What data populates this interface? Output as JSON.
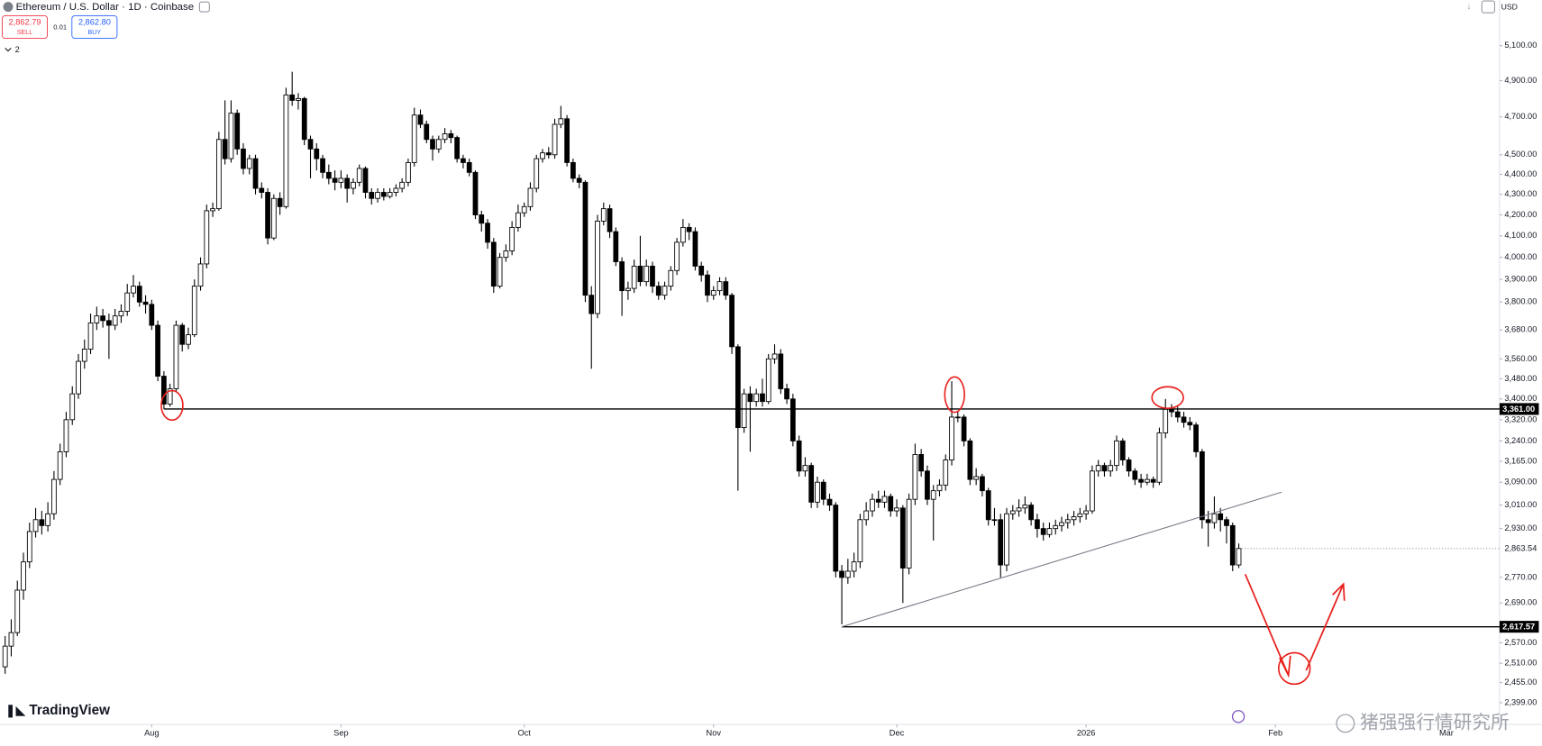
{
  "header": {
    "symbol": "Ethereum / U.S. Dollar · 1D · Coinbase",
    "sell_price": "2,862.79",
    "sell_label": "SELL",
    "spread": "0.01",
    "buy_price": "2,862.80",
    "buy_label": "BUY",
    "indicators": "2",
    "currency": "USD"
  },
  "chart_data": {
    "type": "candlestick",
    "ohlc": [
      [
        2500,
        2590,
        2480,
        2560
      ],
      [
        2560,
        2640,
        2530,
        2600
      ],
      [
        2600,
        2760,
        2590,
        2730
      ],
      [
        2730,
        2850,
        2700,
        2820
      ],
      [
        2820,
        2950,
        2800,
        2920
      ],
      [
        2920,
        3000,
        2900,
        2960
      ],
      [
        2960,
        2990,
        2910,
        2940
      ],
      [
        2940,
        3020,
        2920,
        2980
      ],
      [
        2980,
        3130,
        2960,
        3100
      ],
      [
        3100,
        3230,
        3080,
        3200
      ],
      [
        3200,
        3350,
        3180,
        3320
      ],
      [
        3320,
        3450,
        3300,
        3420
      ],
      [
        3420,
        3580,
        3400,
        3550
      ],
      [
        3550,
        3640,
        3520,
        3600
      ],
      [
        3600,
        3750,
        3580,
        3710
      ],
      [
        3710,
        3780,
        3680,
        3740
      ],
      [
        3740,
        3770,
        3690,
        3720
      ],
      [
        3720,
        3750,
        3560,
        3700
      ],
      [
        3700,
        3770,
        3680,
        3740
      ],
      [
        3740,
        3790,
        3710,
        3760
      ],
      [
        3760,
        3880,
        3740,
        3840
      ],
      [
        3840,
        3920,
        3820,
        3870
      ],
      [
        3870,
        3890,
        3780,
        3800
      ],
      [
        3800,
        3830,
        3750,
        3790
      ],
      [
        3790,
        3810,
        3680,
        3700
      ],
      [
        3700,
        3720,
        3470,
        3490
      ],
      [
        3490,
        3510,
        3361,
        3380
      ],
      [
        3380,
        3460,
        3370,
        3440
      ],
      [
        3440,
        3720,
        3430,
        3700
      ],
      [
        3700,
        3710,
        3590,
        3620
      ],
      [
        3620,
        3690,
        3600,
        3660
      ],
      [
        3660,
        3900,
        3650,
        3870
      ],
      [
        3870,
        4000,
        3850,
        3970
      ],
      [
        3970,
        4250,
        3950,
        4220
      ],
      [
        4220,
        4260,
        4190,
        4230
      ],
      [
        4230,
        4620,
        4220,
        4580
      ],
      [
        4580,
        4790,
        4450,
        4480
      ],
      [
        4480,
        4790,
        4460,
        4720
      ],
      [
        4720,
        4740,
        4500,
        4530
      ],
      [
        4530,
        4560,
        4400,
        4430
      ],
      [
        4430,
        4500,
        4400,
        4480
      ],
      [
        4480,
        4500,
        4300,
        4330
      ],
      [
        4330,
        4360,
        4280,
        4310
      ],
      [
        4310,
        4330,
        4060,
        4090
      ],
      [
        4090,
        4300,
        4080,
        4280
      ],
      [
        4280,
        4310,
        4200,
        4240
      ],
      [
        4240,
        4860,
        4230,
        4820
      ],
      [
        4820,
        4950,
        4760,
        4790
      ],
      [
        4790,
        4830,
        4740,
        4800
      ],
      [
        4800,
        4810,
        4550,
        4580
      ],
      [
        4580,
        4600,
        4380,
        4530
      ],
      [
        4530,
        4560,
        4420,
        4480
      ],
      [
        4480,
        4500,
        4380,
        4410
      ],
      [
        4410,
        4450,
        4350,
        4380
      ],
      [
        4380,
        4420,
        4320,
        4360
      ],
      [
        4360,
        4420,
        4330,
        4380
      ],
      [
        4380,
        4400,
        4260,
        4330
      ],
      [
        4330,
        4380,
        4300,
        4360
      ],
      [
        4360,
        4450,
        4340,
        4430
      ],
      [
        4430,
        4440,
        4280,
        4310
      ],
      [
        4310,
        4330,
        4250,
        4280
      ],
      [
        4280,
        4330,
        4260,
        4310
      ],
      [
        4310,
        4330,
        4270,
        4290
      ],
      [
        4290,
        4330,
        4280,
        4310
      ],
      [
        4310,
        4350,
        4290,
        4330
      ],
      [
        4330,
        4380,
        4310,
        4360
      ],
      [
        4360,
        4480,
        4340,
        4460
      ],
      [
        4460,
        4750,
        4440,
        4710
      ],
      [
        4710,
        4740,
        4640,
        4660
      ],
      [
        4660,
        4680,
        4560,
        4580
      ],
      [
        4580,
        4600,
        4470,
        4530
      ],
      [
        4530,
        4600,
        4510,
        4580
      ],
      [
        4580,
        4640,
        4560,
        4610
      ],
      [
        4610,
        4630,
        4560,
        4590
      ],
      [
        4590,
        4600,
        4460,
        4480
      ],
      [
        4480,
        4500,
        4430,
        4460
      ],
      [
        4460,
        4480,
        4390,
        4410
      ],
      [
        4410,
        4420,
        4180,
        4200
      ],
      [
        4200,
        4220,
        4120,
        4160
      ],
      [
        4160,
        4180,
        4040,
        4070
      ],
      [
        4070,
        4090,
        3840,
        3870
      ],
      [
        3870,
        4020,
        3860,
        4000
      ],
      [
        4000,
        4060,
        3980,
        4030
      ],
      [
        4030,
        4170,
        4010,
        4140
      ],
      [
        4140,
        4250,
        4120,
        4210
      ],
      [
        4210,
        4260,
        4190,
        4240
      ],
      [
        4240,
        4360,
        4220,
        4330
      ],
      [
        4330,
        4500,
        4310,
        4480
      ],
      [
        4480,
        4530,
        4460,
        4510
      ],
      [
        4510,
        4540,
        4480,
        4500
      ],
      [
        4500,
        4690,
        4480,
        4660
      ],
      [
        4660,
        4760,
        4640,
        4690
      ],
      [
        4690,
        4710,
        4440,
        4460
      ],
      [
        4460,
        4480,
        4360,
        4380
      ],
      [
        4380,
        4400,
        4330,
        4360
      ],
      [
        4360,
        4370,
        3800,
        3830
      ],
      [
        3830,
        3870,
        3520,
        3750
      ],
      [
        3750,
        4200,
        3730,
        4170
      ],
      [
        4170,
        4260,
        4150,
        4230
      ],
      [
        4230,
        4250,
        4090,
        4120
      ],
      [
        4120,
        4140,
        3960,
        3980
      ],
      [
        3980,
        4000,
        3740,
        3850
      ],
      [
        3850,
        3890,
        3810,
        3860
      ],
      [
        3860,
        3990,
        3840,
        3960
      ],
      [
        3960,
        4100,
        3870,
        3890
      ],
      [
        3890,
        3990,
        3870,
        3960
      ],
      [
        3960,
        3980,
        3840,
        3870
      ],
      [
        3870,
        3890,
        3810,
        3830
      ],
      [
        3830,
        3890,
        3810,
        3870
      ],
      [
        3870,
        3960,
        3850,
        3940
      ],
      [
        3940,
        4090,
        3920,
        4070
      ],
      [
        4070,
        4180,
        4050,
        4140
      ],
      [
        4140,
        4160,
        4080,
        4120
      ],
      [
        4120,
        4140,
        3940,
        3960
      ],
      [
        3960,
        3980,
        3890,
        3920
      ],
      [
        3920,
        3940,
        3800,
        3830
      ],
      [
        3830,
        3870,
        3810,
        3850
      ],
      [
        3850,
        3910,
        3830,
        3890
      ],
      [
        3890,
        3910,
        3810,
        3830
      ],
      [
        3830,
        3840,
        3580,
        3610
      ],
      [
        3610,
        3620,
        3060,
        3290
      ],
      [
        3290,
        3440,
        3270,
        3420
      ],
      [
        3420,
        3450,
        3200,
        3390
      ],
      [
        3390,
        3440,
        3370,
        3420
      ],
      [
        3420,
        3480,
        3370,
        3390
      ],
      [
        3390,
        3580,
        3380,
        3560
      ],
      [
        3560,
        3620,
        3540,
        3580
      ],
      [
        3580,
        3600,
        3420,
        3440
      ],
      [
        3440,
        3460,
        3380,
        3400
      ],
      [
        3400,
        3420,
        3220,
        3240
      ],
      [
        3240,
        3260,
        3110,
        3130
      ],
      [
        3130,
        3180,
        3110,
        3150
      ],
      [
        3150,
        3160,
        3000,
        3020
      ],
      [
        3020,
        3110,
        3000,
        3090
      ],
      [
        3090,
        3100,
        3010,
        3030
      ],
      [
        3030,
        3050,
        2990,
        3010
      ],
      [
        3010,
        3020,
        2770,
        2790
      ],
      [
        2790,
        2810,
        2625,
        2770
      ],
      [
        2770,
        2830,
        2750,
        2790
      ],
      [
        2790,
        2850,
        2770,
        2820
      ],
      [
        2820,
        2980,
        2800,
        2960
      ],
      [
        2960,
        3020,
        2940,
        2990
      ],
      [
        2990,
        3050,
        2970,
        3030
      ],
      [
        3030,
        3060,
        3000,
        3020
      ],
      [
        3020,
        3060,
        3000,
        3040
      ],
      [
        3040,
        3050,
        2970,
        2990
      ],
      [
        2990,
        3030,
        2970,
        3000
      ],
      [
        3000,
        3010,
        2690,
        2800
      ],
      [
        2800,
        3050,
        2780,
        3030
      ],
      [
        3030,
        3230,
        3010,
        3190
      ],
      [
        3190,
        3210,
        3110,
        3130
      ],
      [
        3130,
        3150,
        3010,
        3030
      ],
      [
        3030,
        3080,
        2890,
        3060
      ],
      [
        3060,
        3100,
        3040,
        3080
      ],
      [
        3080,
        3190,
        3060,
        3170
      ],
      [
        3170,
        3470,
        3150,
        3330
      ],
      [
        3330,
        3350,
        3310,
        3330
      ],
      [
        3330,
        3340,
        3220,
        3240
      ],
      [
        3240,
        3250,
        3080,
        3100
      ],
      [
        3100,
        3140,
        3080,
        3110
      ],
      [
        3110,
        3120,
        3040,
        3060
      ],
      [
        3060,
        3070,
        2940,
        2960
      ],
      [
        2960,
        3000,
        2940,
        2960
      ],
      [
        2960,
        2980,
        2770,
        2810
      ],
      [
        2810,
        3000,
        2790,
        2980
      ],
      [
        2980,
        3010,
        2960,
        2990
      ],
      [
        2990,
        3030,
        2970,
        3000
      ],
      [
        3000,
        3040,
        2980,
        3010
      ],
      [
        3010,
        3020,
        2940,
        2960
      ],
      [
        2960,
        2980,
        2900,
        2930
      ],
      [
        2930,
        2950,
        2890,
        2910
      ],
      [
        2910,
        2950,
        2900,
        2930
      ],
      [
        2930,
        2960,
        2910,
        2940
      ],
      [
        2940,
        2970,
        2920,
        2950
      ],
      [
        2950,
        2980,
        2930,
        2960
      ],
      [
        2960,
        2990,
        2940,
        2970
      ],
      [
        2970,
        3000,
        2950,
        2980
      ],
      [
        2980,
        3010,
        2960,
        2990
      ],
      [
        2990,
        3150,
        2980,
        3130
      ],
      [
        3130,
        3170,
        3110,
        3150
      ],
      [
        3150,
        3160,
        3110,
        3130
      ],
      [
        3130,
        3170,
        3110,
        3150
      ],
      [
        3150,
        3260,
        3130,
        3240
      ],
      [
        3240,
        3250,
        3150,
        3170
      ],
      [
        3170,
        3180,
        3110,
        3130
      ],
      [
        3130,
        3140,
        3080,
        3100
      ],
      [
        3100,
        3120,
        3070,
        3090
      ],
      [
        3090,
        3120,
        3080,
        3100
      ],
      [
        3100,
        3110,
        3070,
        3090
      ],
      [
        3090,
        3290,
        3080,
        3270
      ],
      [
        3270,
        3400,
        3250,
        3360
      ],
      [
        3360,
        3380,
        3330,
        3350
      ],
      [
        3350,
        3370,
        3310,
        3330
      ],
      [
        3330,
        3350,
        3290,
        3310
      ],
      [
        3310,
        3330,
        3280,
        3300
      ],
      [
        3300,
        3310,
        3180,
        3200
      ],
      [
        3200,
        3210,
        2930,
        2960
      ],
      [
        2960,
        2990,
        2870,
        2950
      ],
      [
        2950,
        3040,
        2930,
        2980
      ],
      [
        2980,
        3000,
        2920,
        2960
      ],
      [
        2960,
        2970,
        2880,
        2940
      ],
      [
        2940,
        2950,
        2790,
        2810
      ],
      [
        2810,
        2880,
        2800,
        2863.54
      ]
    ],
    "up_color": "#ffffff",
    "down_color": "#000000",
    "xlim": [
      -0.8,
      244.7
    ],
    "xticks": [
      {
        "value": 24,
        "label": "Aug"
      },
      {
        "value": 55,
        "label": "Sep"
      },
      {
        "value": 85,
        "label": "Oct"
      },
      {
        "value": 116,
        "label": "Nov"
      },
      {
        "value": 146,
        "label": "Dec"
      },
      {
        "value": 177,
        "label": "2026"
      },
      {
        "value": 208,
        "label": "Feb"
      },
      {
        "value": 236,
        "label": "Mar"
      }
    ],
    "ylim": [
      2340,
      5375
    ],
    "log_scale": true,
    "yticks": [
      {
        "value": 5100,
        "label": "5,100.00"
      },
      {
        "value": 4900,
        "label": "4,900.00"
      },
      {
        "value": 4700,
        "label": "4,700.00"
      },
      {
        "value": 4500,
        "label": "4,500.00"
      },
      {
        "value": 4400,
        "label": "4,400.00"
      },
      {
        "value": 4300,
        "label": "4,300.00"
      },
      {
        "value": 4200,
        "label": "4,200.00"
      },
      {
        "value": 4100,
        "label": "4,100.00"
      },
      {
        "value": 4000,
        "label": "4,000.00"
      },
      {
        "value": 3900,
        "label": "3,900.00"
      },
      {
        "value": 3800,
        "label": "3,800.00"
      },
      {
        "value": 3680,
        "label": "3,680.00"
      },
      {
        "value": 3560,
        "label": "3,560.00"
      },
      {
        "value": 3480,
        "label": "3,480.00"
      },
      {
        "value": 3400,
        "label": "3,400.00"
      },
      {
        "value": 3320,
        "label": "3,320.00"
      },
      {
        "value": 3240,
        "label": "3,240.00"
      },
      {
        "value": 3165,
        "label": "3,165.00"
      },
      {
        "value": 3090,
        "label": "3,090.00"
      },
      {
        "value": 3010,
        "label": "3,010.00"
      },
      {
        "value": 2930,
        "label": "2,930.00"
      },
      {
        "value": 2770,
        "label": "2,770.00"
      },
      {
        "value": 2690,
        "label": "2,690.00"
      },
      {
        "value": 2570,
        "label": "2,570.00"
      },
      {
        "value": 2510,
        "label": "2,510.00"
      },
      {
        "value": 2455,
        "label": "2,455.00"
      },
      {
        "value": 2399,
        "label": "2,399.00"
      }
    ],
    "levels": [
      {
        "value": 3361,
        "label": "3,361.00",
        "from": 26
      },
      {
        "value": 2617.57,
        "label": "2,617.57",
        "from": 137
      }
    ],
    "trendline": {
      "x": [
        137,
        209
      ],
      "y": [
        2617.57,
        3055
      ]
    },
    "last_price_label": "2,863.54"
  },
  "branding": {
    "logo": "TradingView",
    "watermark": "猪强强行情研究所"
  }
}
